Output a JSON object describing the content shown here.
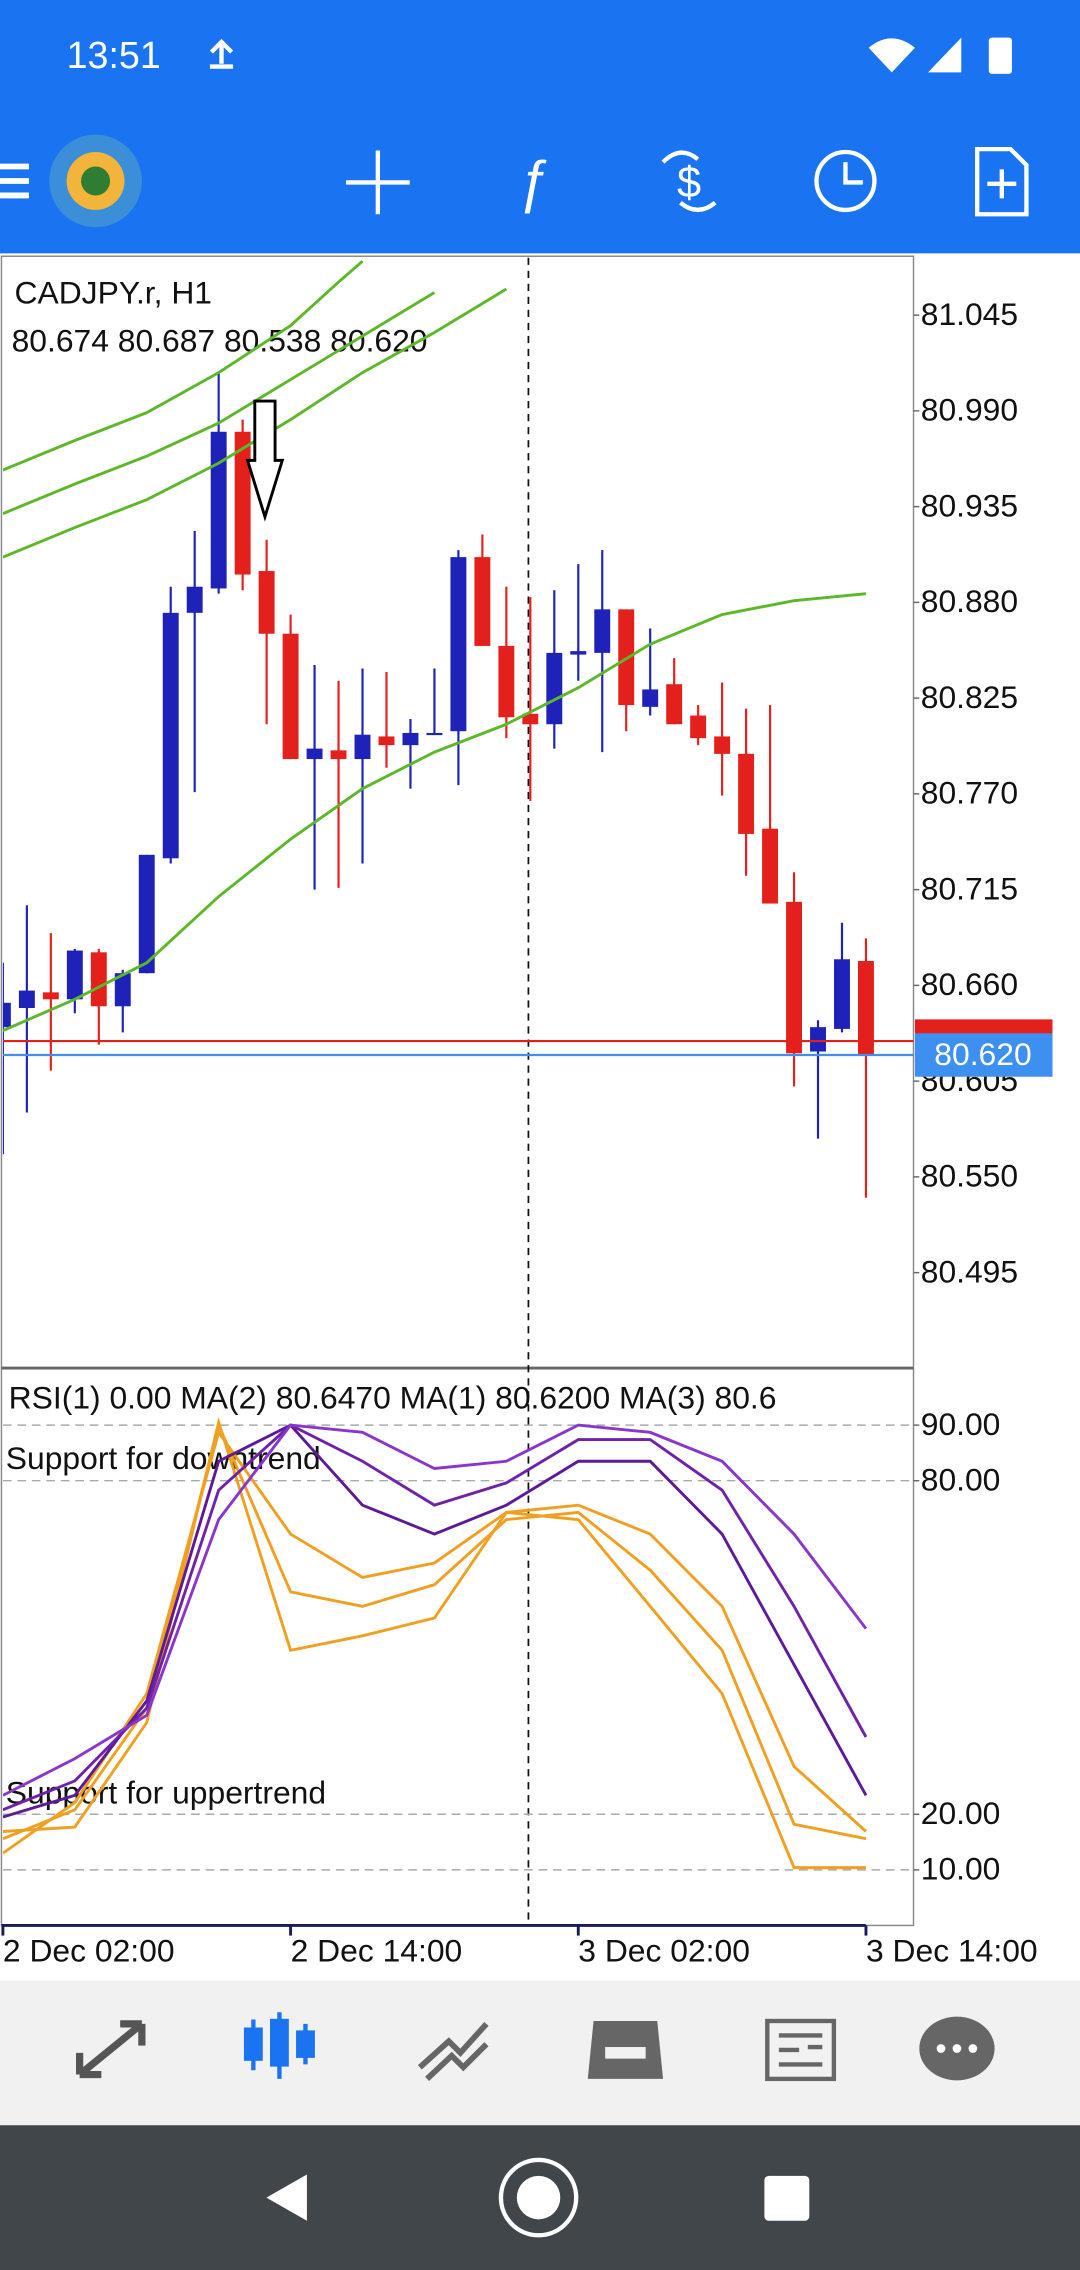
{
  "status_bar": {
    "time": "13:51"
  },
  "chart_data": [
    {
      "type": "candlestick",
      "title": "CADJPY.r, H1",
      "ohlc_text": "80.674 80.687 80.538 80.620",
      "categories": [
        "2 Dec 02:00",
        null,
        null,
        null,
        null,
        null,
        null,
        null,
        null,
        null,
        null,
        null,
        "2 Dec 14:00",
        null,
        null,
        null,
        null,
        null,
        null,
        null,
        null,
        null,
        null,
        null,
        "3 Dec 02:00",
        null,
        null,
        null,
        null,
        null,
        null,
        null,
        null,
        null,
        null,
        null,
        "3 Dec 14:00"
      ],
      "open": [
        80.636,
        80.647,
        80.656,
        80.652,
        80.679,
        80.648,
        80.667,
        80.733,
        80.874,
        80.888,
        80.978,
        80.898,
        80.862,
        80.79,
        80.795,
        80.79,
        80.803,
        80.798,
        80.804,
        80.806,
        80.906,
        80.855,
        80.816,
        80.81,
        80.85,
        80.851,
        80.876,
        80.82,
        80.833,
        80.815,
        80.803,
        80.793,
        80.75,
        80.708,
        80.622,
        80.635,
        80.674
      ],
      "high": [
        80.673,
        80.706,
        80.69,
        80.681,
        80.681,
        80.669,
        80.735,
        80.889,
        80.921,
        81.012,
        80.985,
        80.916,
        80.873,
        80.844,
        80.835,
        80.842,
        80.84,
        80.813,
        80.842,
        80.91,
        80.919,
        80.889,
        80.883,
        80.887,
        80.902,
        80.91,
        80.876,
        80.865,
        80.848,
        80.821,
        80.834,
        80.819,
        80.821,
        80.725,
        80.64,
        80.696,
        80.687
      ],
      "low": [
        80.563,
        80.587,
        80.611,
        80.644,
        80.626,
        80.633,
        80.667,
        80.73,
        80.771,
        80.885,
        80.887,
        80.81,
        80.79,
        80.715,
        80.716,
        80.73,
        80.785,
        80.773,
        80.804,
        80.775,
        80.855,
        80.802,
        80.766,
        80.796,
        80.835,
        80.794,
        80.806,
        80.815,
        80.81,
        80.798,
        80.769,
        80.723,
        80.707,
        80.602,
        80.572,
        80.633,
        80.538
      ],
      "close": [
        80.65,
        80.657,
        80.652,
        80.68,
        80.648,
        80.667,
        80.735,
        80.874,
        80.889,
        80.978,
        80.896,
        80.862,
        80.79,
        80.796,
        80.79,
        80.804,
        80.798,
        80.805,
        80.805,
        80.906,
        80.855,
        80.814,
        80.81,
        80.851,
        80.852,
        80.876,
        80.821,
        80.83,
        80.81,
        80.802,
        80.793,
        80.747,
        80.707,
        80.621,
        80.636,
        80.675,
        80.62
      ],
      "up_color": "#1f22b8",
      "down_color": "#e3201b",
      "lines": [
        {
          "color": "#5cb82a",
          "x": [
            0,
            3,
            6,
            9,
            12,
            14,
            15
          ],
          "values": [
            80.956,
            80.973,
            80.989,
            81.012,
            81.039,
            81.064,
            81.076
          ]
        },
        {
          "color": "#5cb82a",
          "x": [
            0,
            3,
            6,
            9,
            12,
            15,
            18
          ],
          "values": [
            80.931,
            80.948,
            80.964,
            80.983,
            81.008,
            81.033,
            81.058
          ]
        },
        {
          "color": "#5cb82a",
          "x": [
            0,
            3,
            6,
            9,
            12,
            15,
            18,
            21
          ],
          "values": [
            80.906,
            80.923,
            80.939,
            80.96,
            80.985,
            81.012,
            81.035,
            81.06
          ]
        },
        {
          "color": "#5cb82a",
          "x": [
            0,
            3,
            6,
            9,
            12,
            15,
            18,
            21,
            24,
            27,
            30,
            33,
            36
          ],
          "values": [
            80.634,
            80.652,
            80.673,
            80.711,
            80.744,
            80.773,
            80.794,
            80.81,
            80.831,
            80.856,
            80.873,
            80.881,
            80.885
          ]
        }
      ],
      "price_lines": [
        {
          "value": 80.628,
          "color": "#e3201b"
        },
        {
          "value": 80.62,
          "label": "80.620",
          "color": "#3d8ff0"
        }
      ],
      "ylim": [
        80.441,
        81.078
      ],
      "yticks": [
        81.045,
        {
          "value": 80.99,
          "label": "80.990"
        },
        80.935,
        {
          "value": 80.88,
          "label": "80.880"
        },
        80.825,
        {
          "value": 80.77,
          "label": "80.770"
        },
        80.715,
        {
          "value": 80.66,
          "label": "80.660"
        },
        80.605,
        {
          "value": 80.55,
          "label": "80.550"
        },
        80.495
      ]
    },
    {
      "type": "line",
      "title": "RSI(1) 0.00 MA(2) 80.6470 MA(1) 80.6200 MA(3) 80.6",
      "annotations": [
        "Support for downtrend",
        "Support for uppertrend"
      ],
      "x": [
        0,
        3,
        6,
        9,
        12,
        15,
        18,
        21,
        24,
        27,
        30,
        33,
        36
      ],
      "series": [
        {
          "color": "#f0a020",
          "values": [
            16.9,
            17.7,
            36.5,
            90.5,
            49.5,
            52.1,
            55.3,
            74.3,
            73.0,
            57.4,
            41.7,
            10.4,
            10.4
          ]
        },
        {
          "color": "#f0a020",
          "values": [
            15.6,
            20.8,
            39.1,
            90.0,
            60.0,
            57.4,
            61.3,
            73.0,
            74.3,
            63.9,
            49.5,
            18.2,
            15.6
          ]
        },
        {
          "color": "#f0a020",
          "values": [
            13.0,
            22.1,
            41.7,
            88.7,
            70.4,
            62.6,
            65.2,
            74.3,
            75.6,
            70.4,
            57.4,
            28.6,
            16.9
          ]
        },
        {
          "color": "#5e1a96",
          "values": [
            19.5,
            23.4,
            40.4,
            83.5,
            90.0,
            75.6,
            70.4,
            75.6,
            83.5,
            83.5,
            70.4,
            46.9,
            23.4
          ]
        },
        {
          "color": "#6f22a8",
          "values": [
            20.8,
            26.0,
            39.1,
            78.3,
            90.0,
            83.5,
            75.6,
            79.6,
            87.4,
            87.4,
            78.3,
            57.4,
            33.9
          ]
        },
        {
          "color": "#8a35cc",
          "values": [
            23.4,
            30.0,
            37.8,
            73.0,
            90.0,
            88.7,
            82.2,
            83.5,
            90.0,
            88.7,
            83.5,
            70.4,
            53.4
          ]
        }
      ],
      "ylim": [
        0,
        100
      ],
      "yticks": [
        {
          "value": 90,
          "label": "90.00"
        },
        {
          "value": 80,
          "label": "80.00"
        },
        {
          "value": 20,
          "label": "20.00"
        },
        {
          "value": 10,
          "label": "10.00"
        }
      ]
    }
  ]
}
